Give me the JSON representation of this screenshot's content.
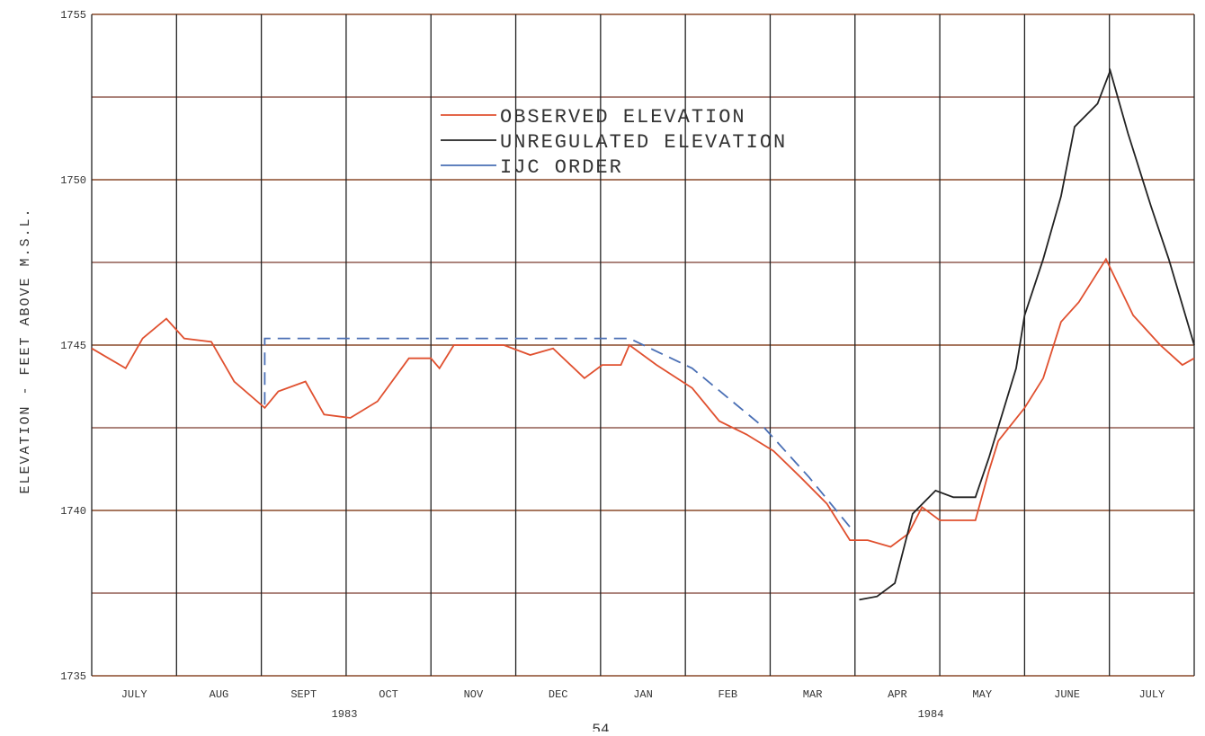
{
  "chart_data": {
    "type": "line",
    "y_label": "ELEVATION - FEET ABOVE M.S.L.",
    "categories": [
      "JULY",
      "AUG",
      "SEPT",
      "OCT",
      "NOV",
      "DEC",
      "JAN",
      "FEB",
      "MAR",
      "APR",
      "MAY",
      "JUNE",
      "JULY"
    ],
    "year_labels": [
      "1983",
      "1984"
    ],
    "page_number": "54",
    "xlim": [
      0,
      13
    ],
    "ylim": [
      1735,
      1755
    ],
    "yticks": [
      1735,
      1740,
      1745,
      1750,
      1755
    ],
    "ygrid_minor": [
      1737.5,
      1742.5,
      1747.5,
      1752.5
    ],
    "grid": true,
    "series": [
      {
        "name": "OBSERVED ELEVATION",
        "color": "#e0502f",
        "dash": false,
        "x": [
          0,
          0.4,
          0.6,
          0.88,
          1.09,
          1.41,
          1.68,
          2.04,
          2.2,
          2.52,
          2.74,
          3.05,
          3.37,
          3.74,
          4.0,
          4.1,
          4.27,
          4.86,
          5.17,
          5.44,
          5.81,
          6.02,
          6.24,
          6.34,
          6.66,
          7.08,
          7.4,
          7.72,
          8.04,
          8.36,
          8.67,
          8.94,
          9.15,
          9.42,
          9.63,
          9.79,
          10.0,
          10.42,
          10.58,
          10.69,
          11.0,
          11.22,
          11.43,
          11.64,
          11.96,
          12.28,
          12.6,
          12.86,
          13
        ],
        "values": [
          1744.9,
          1744.3,
          1745.2,
          1745.8,
          1745.2,
          1745.1,
          1743.9,
          1743.1,
          1743.6,
          1743.9,
          1742.9,
          1742.8,
          1743.3,
          1744.6,
          1744.6,
          1744.3,
          1745.0,
          1745.0,
          1744.7,
          1744.9,
          1744.0,
          1744.4,
          1744.4,
          1745.0,
          1744.4,
          1743.7,
          1742.7,
          1742.3,
          1741.8,
          1741.0,
          1740.2,
          1739.1,
          1739.1,
          1738.9,
          1739.3,
          1740.1,
          1739.7,
          1739.7,
          1741.2,
          1742.1,
          1743.1,
          1744.0,
          1745.7,
          1746.3,
          1747.6,
          1745.9,
          1745.0,
          1744.4,
          1744.6
        ]
      },
      {
        "name": "UNREGULATED ELEVATION",
        "color": "#222222",
        "dash": false,
        "x": [
          9.05,
          9.26,
          9.47,
          9.68,
          9.95,
          10.16,
          10.42,
          10.58,
          10.9,
          11.0,
          11.22,
          11.43,
          11.59,
          11.86,
          12.01,
          12.22,
          12.49,
          12.7,
          13
        ],
        "values": [
          1737.3,
          1737.4,
          1737.8,
          1739.9,
          1740.6,
          1740.4,
          1740.4,
          1741.6,
          1744.3,
          1745.9,
          1747.6,
          1749.5,
          1751.6,
          1752.3,
          1753.3,
          1751.4,
          1749.2,
          1747.6,
          1745.0
        ]
      },
      {
        "name": "IJC ORDER",
        "color": "#4a6fb5",
        "dash": true,
        "x": [
          2.04,
          2.04,
          6.34,
          7.08,
          7.93,
          8.46,
          8.94
        ],
        "values": [
          1743.2,
          1745.2,
          1745.2,
          1744.3,
          1742.5,
          1741.0,
          1739.5
        ]
      }
    ]
  }
}
